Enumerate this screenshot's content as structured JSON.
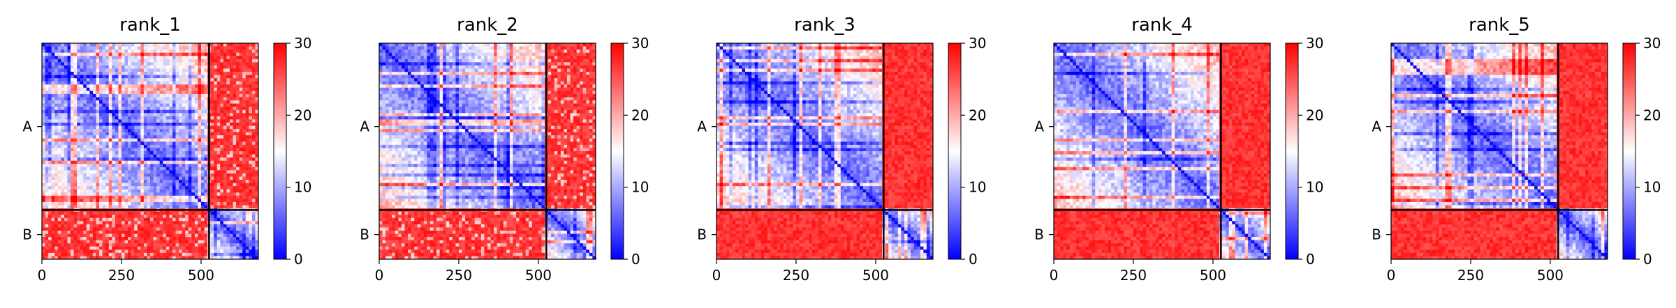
{
  "chart_data": [
    {
      "type": "heatmap",
      "title": "rank_1",
      "chains": [
        {
          "label": "A",
          "length": 525
        },
        {
          "label": "B",
          "length": 155
        }
      ],
      "x_ticks": [
        0,
        250,
        500
      ],
      "xlim": [
        0,
        680
      ],
      "colorbar": {
        "min": 0,
        "max": 30,
        "ticks": [
          0,
          10,
          20,
          30
        ],
        "colors": [
          "#0000ff",
          "#ffffff",
          "#ff0000"
        ]
      },
      "seed": 11
    },
    {
      "type": "heatmap",
      "title": "rank_2",
      "chains": [
        {
          "label": "A",
          "length": 525
        },
        {
          "label": "B",
          "length": 155
        }
      ],
      "x_ticks": [
        0,
        250,
        500
      ],
      "xlim": [
        0,
        680
      ],
      "colorbar": {
        "min": 0,
        "max": 30,
        "ticks": [
          0,
          10,
          20,
          30
        ],
        "colors": [
          "#0000ff",
          "#ffffff",
          "#ff0000"
        ]
      },
      "seed": 23
    },
    {
      "type": "heatmap",
      "title": "rank_3",
      "chains": [
        {
          "label": "A",
          "length": 525
        },
        {
          "label": "B",
          "length": 155
        }
      ],
      "x_ticks": [
        0,
        250,
        500
      ],
      "xlim": [
        0,
        680
      ],
      "colorbar": {
        "min": 0,
        "max": 30,
        "ticks": [
          0,
          10,
          20,
          30
        ],
        "colors": [
          "#0000ff",
          "#ffffff",
          "#ff0000"
        ]
      },
      "seed": 37
    },
    {
      "type": "heatmap",
      "title": "rank_4",
      "chains": [
        {
          "label": "A",
          "length": 525
        },
        {
          "label": "B",
          "length": 155
        }
      ],
      "x_ticks": [
        0,
        250,
        500
      ],
      "xlim": [
        0,
        680
      ],
      "colorbar": {
        "min": 0,
        "max": 30,
        "ticks": [
          0,
          10,
          20,
          30
        ],
        "colors": [
          "#0000ff",
          "#ffffff",
          "#ff0000"
        ]
      },
      "seed": 41
    },
    {
      "type": "heatmap",
      "title": "rank_5",
      "chains": [
        {
          "label": "A",
          "length": 525
        },
        {
          "label": "B",
          "length": 155
        }
      ],
      "x_ticks": [
        0,
        250,
        500
      ],
      "xlim": [
        0,
        680
      ],
      "colorbar": {
        "min": 0,
        "max": 30,
        "ticks": [
          0,
          10,
          20,
          30
        ],
        "colors": [
          "#0000ff",
          "#ffffff",
          "#ff0000"
        ]
      },
      "seed": 53
    }
  ]
}
